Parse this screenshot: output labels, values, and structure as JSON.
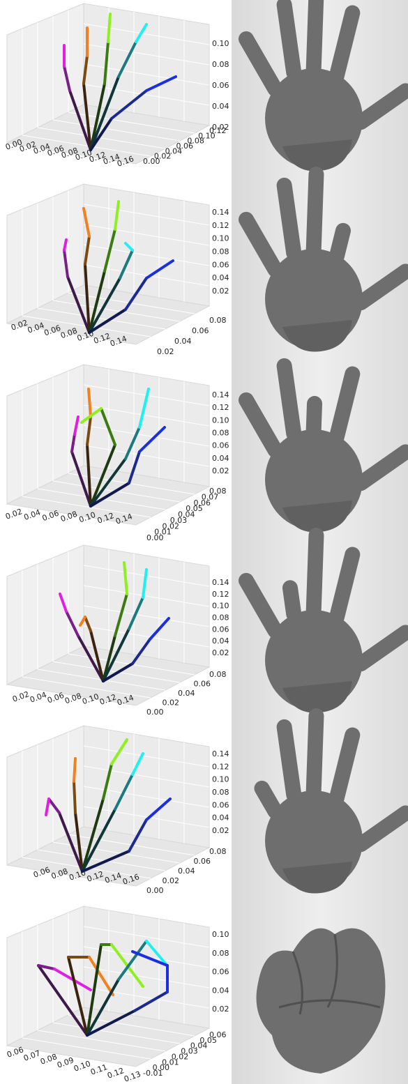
{
  "panels": [
    {
      "x_ticks": [
        "0.00",
        "0.02",
        "0.04",
        "0.06",
        "0.08",
        "0.10",
        "0.12",
        "0.14",
        "0.16"
      ],
      "y_ticks": [
        "0.00",
        "0.02",
        "0.04",
        "0.06",
        "0.08",
        "0.10",
        "0.12"
      ],
      "z_ticks": [
        "0.02",
        "0.04",
        "0.06",
        "0.08",
        "0.10"
      ]
    },
    {
      "x_ticks": [
        "0.02",
        "0.04",
        "0.06",
        "0.08",
        "0.10",
        "0.12",
        "0.14"
      ],
      "y_ticks": [
        "0.02",
        "0.04",
        "0.06",
        "0.08"
      ],
      "z_ticks": [
        "0.02",
        "0.04",
        "0.06",
        "0.08",
        "0.10",
        "0.12",
        "0.14"
      ]
    },
    {
      "x_ticks": [
        "0.02",
        "0.04",
        "0.06",
        "0.08",
        "0.10",
        "0.12",
        "0.14"
      ],
      "y_ticks": [
        "0.00",
        "0.01",
        "0.02",
        "0.03",
        "0.04",
        "0.05",
        "0.06",
        "0.07",
        "0.08"
      ],
      "z_ticks": [
        "0.02",
        "0.04",
        "0.06",
        "0.08",
        "0.10",
        "0.12",
        "0.14"
      ]
    },
    {
      "x_ticks": [
        "0.02",
        "0.04",
        "0.06",
        "0.08",
        "0.10",
        "0.12",
        "0.14"
      ],
      "y_ticks": [
        "0.00",
        "0.02",
        "0.04",
        "0.06",
        "0.08"
      ],
      "z_ticks": [
        "0.02",
        "0.04",
        "0.06",
        "0.08",
        "0.10",
        "0.12",
        "0.14"
      ]
    },
    {
      "x_ticks": [
        "0.06",
        "0.08",
        "0.10",
        "0.12",
        "0.14",
        "0.16"
      ],
      "y_ticks": [
        "0.00",
        "0.02",
        "0.04",
        "0.06",
        "0.08"
      ],
      "z_ticks": [
        "0.02",
        "0.04",
        "0.06",
        "0.08",
        "0.10",
        "0.12",
        "0.14"
      ]
    },
    {
      "x_ticks": [
        "0.06",
        "0.07",
        "0.08",
        "0.09",
        "0.10",
        "0.11",
        "0.12",
        "0.13"
      ],
      "y_ticks": [
        "-0.01",
        "0.00",
        "0.01",
        "0.02",
        "0.03",
        "0.04",
        "0.05",
        "0.06"
      ],
      "z_ticks": [
        "0.02",
        "0.04",
        "0.06",
        "0.08",
        "0.10"
      ]
    }
  ]
}
